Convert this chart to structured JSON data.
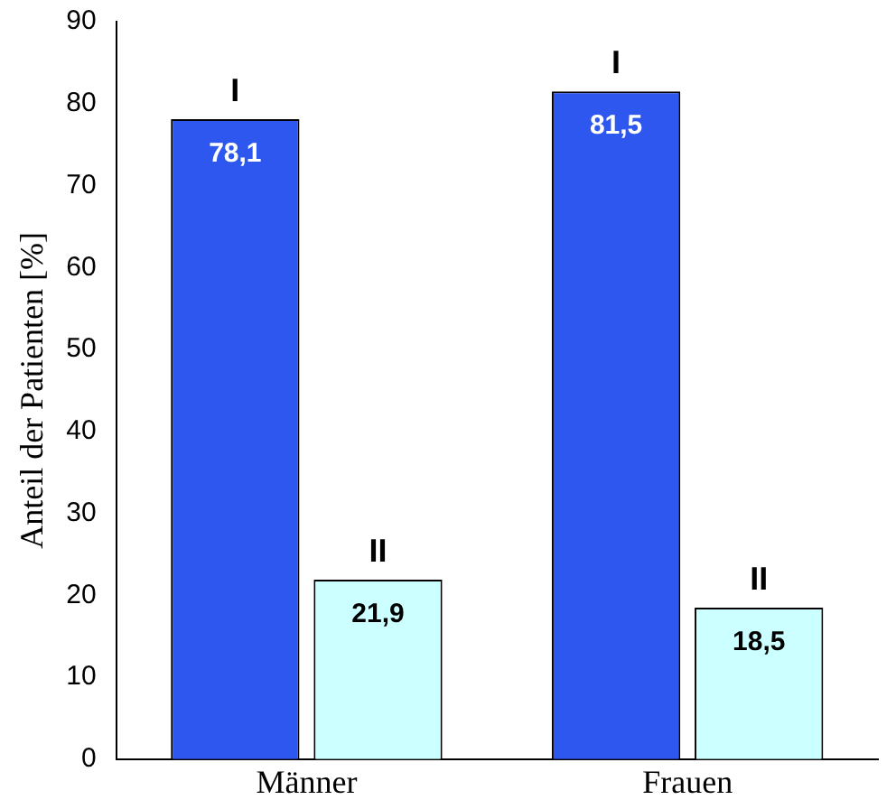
{
  "chart_data": {
    "type": "bar",
    "ylabel": "Anteil der Patienten [%]",
    "categories": [
      "Männer",
      "Frauen"
    ],
    "series": [
      {
        "name": "I",
        "color": "#2e57f0",
        "values": [
          78.1,
          81.5
        ],
        "value_labels": [
          "78,1",
          "81,5"
        ]
      },
      {
        "name": "II",
        "color": "#ccffff",
        "values": [
          21.9,
          18.5
        ],
        "value_labels": [
          "21,9",
          "18,5"
        ]
      }
    ],
    "ylim": [
      0,
      90
    ],
    "yticks": [
      0,
      10,
      20,
      30,
      40,
      50,
      60,
      70,
      80,
      90
    ],
    "grid": false,
    "legend": false
  }
}
